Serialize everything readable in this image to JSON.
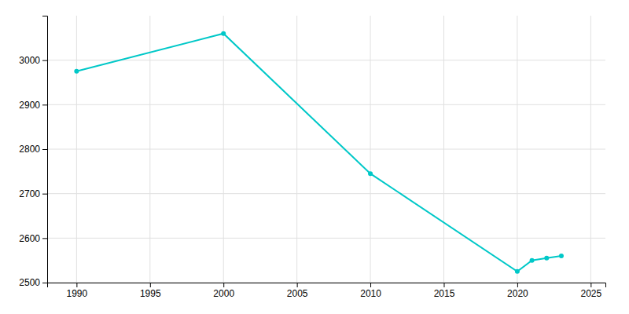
{
  "chart_data": {
    "type": "line",
    "x": [
      1990,
      2000,
      2010,
      2020,
      2021,
      2022,
      2023
    ],
    "values": [
      2975,
      3060,
      2745,
      2525,
      2550,
      2555,
      2560
    ],
    "color": "#00C8C8",
    "marker": "circle",
    "xlim": [
      1988,
      2026
    ],
    "ylim": [
      2500,
      3100
    ],
    "xticks": [
      1990,
      1995,
      2000,
      2005,
      2010,
      2015,
      2020,
      2025
    ],
    "yticks": [
      2500,
      2600,
      2700,
      2800,
      2900,
      3000
    ],
    "grid": true
  }
}
